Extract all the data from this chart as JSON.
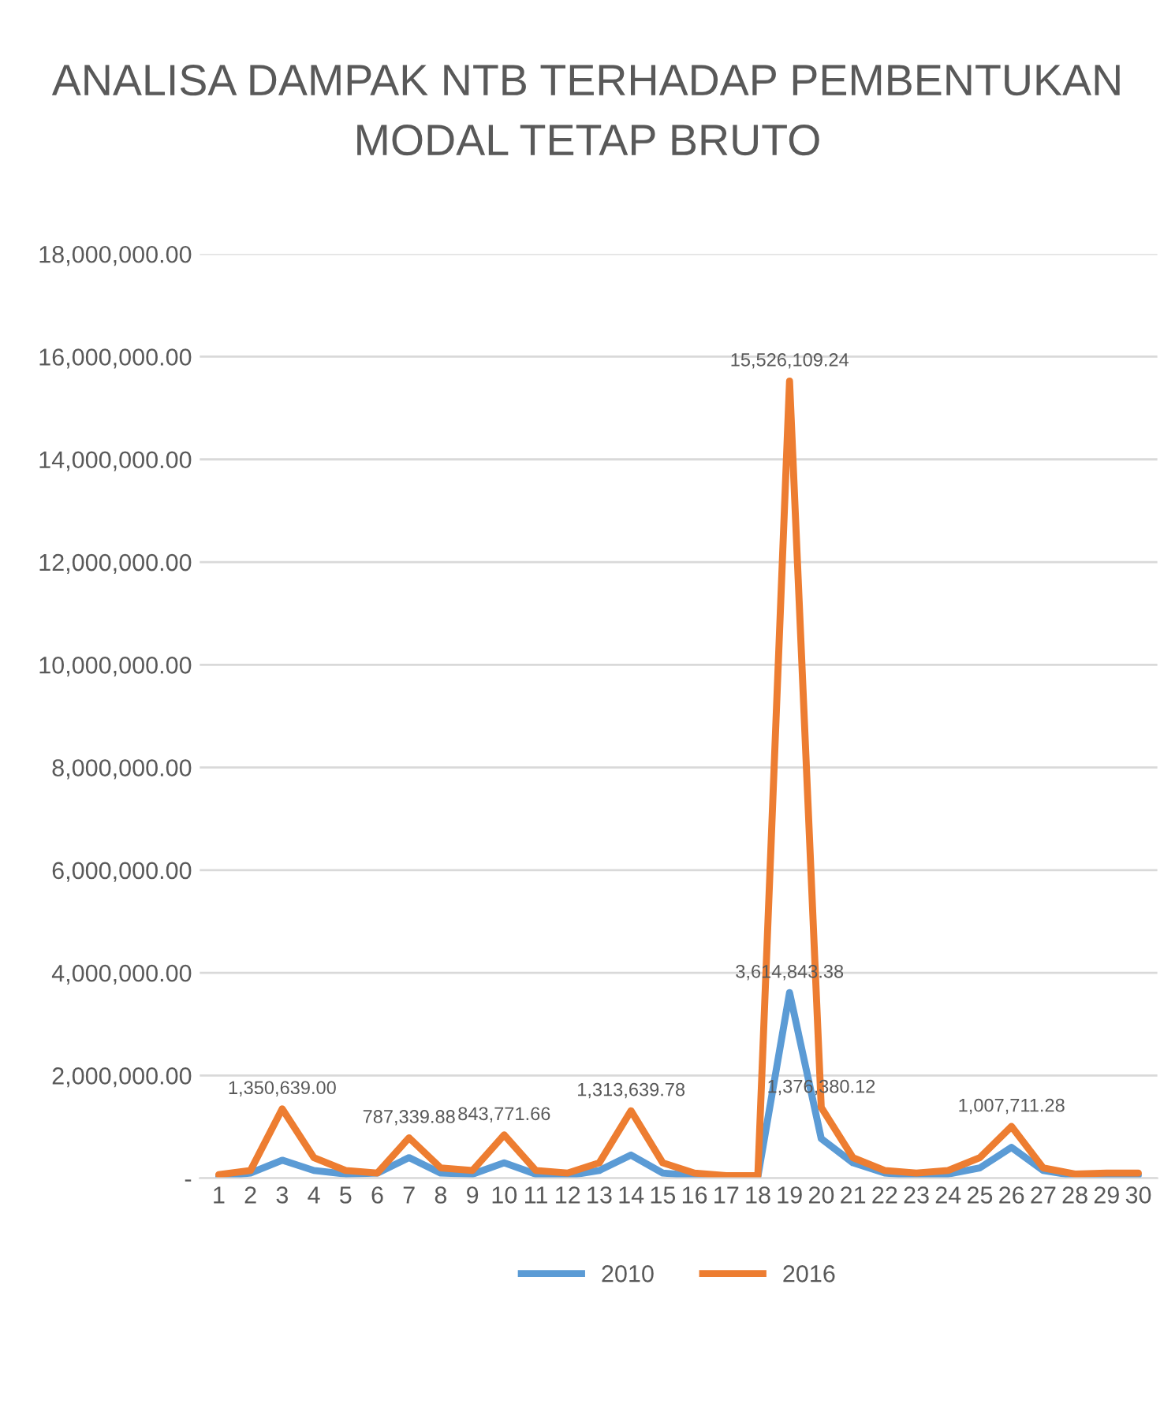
{
  "chart_data": {
    "type": "line",
    "title": "ANALISA DAMPAK NTB TERHADAP PEMBENTUKAN MODAL TETAP BRUTO",
    "categories": [
      "1",
      "2",
      "3",
      "4",
      "5",
      "6",
      "7",
      "8",
      "9",
      "10",
      "11",
      "12",
      "13",
      "14",
      "15",
      "16",
      "17",
      "18",
      "19",
      "20",
      "21",
      "22",
      "23",
      "24",
      "25",
      "26",
      "27",
      "28",
      "29",
      "30"
    ],
    "series": [
      {
        "name": "2010",
        "color": "#5b9bd5",
        "values": [
          30000,
          100000,
          350000,
          150000,
          80000,
          100000,
          400000,
          100000,
          80000,
          300000,
          80000,
          50000,
          150000,
          450000,
          100000,
          50000,
          30000,
          30000,
          3614843.38,
          770000,
          300000,
          100000,
          50000,
          80000,
          200000,
          600000,
          150000,
          50000,
          60000,
          60000
        ],
        "value_labels": [
          null,
          null,
          null,
          null,
          null,
          null,
          null,
          null,
          null,
          null,
          null,
          null,
          null,
          null,
          null,
          null,
          null,
          null,
          "3,614,843.38",
          null,
          null,
          null,
          null,
          null,
          null,
          null,
          null,
          null,
          null,
          null
        ]
      },
      {
        "name": "2016",
        "color": "#ed7d31",
        "values": [
          70000,
          150000,
          1350639,
          400000,
          150000,
          100000,
          787339.88,
          200000,
          150000,
          843771.66,
          150000,
          100000,
          300000,
          1313639.78,
          300000,
          100000,
          50000,
          50000,
          15526109.24,
          1376380.12,
          400000,
          150000,
          100000,
          150000,
          400000,
          1007711.28,
          200000,
          80000,
          100000,
          100000
        ],
        "value_labels": [
          null,
          null,
          "1,350,639.00",
          null,
          null,
          null,
          "787,339.88",
          null,
          null,
          "843,771.66",
          null,
          null,
          null,
          "1,313,639.78",
          null,
          null,
          null,
          null,
          "15,526,109.24",
          "1,376,380.12",
          null,
          null,
          null,
          null,
          null,
          "1,007,711.28",
          null,
          null,
          null,
          null
        ]
      }
    ],
    "ylim": [
      0,
      18000000
    ],
    "yticks": [
      {
        "value": 0,
        "label": "-"
      },
      {
        "value": 2000000,
        "label": "2,000,000.00"
      },
      {
        "value": 4000000,
        "label": "4,000,000.00"
      },
      {
        "value": 6000000,
        "label": "6,000,000.00"
      },
      {
        "value": 8000000,
        "label": "8,000,000.00"
      },
      {
        "value": 10000000,
        "label": "10,000,000.00"
      },
      {
        "value": 12000000,
        "label": "12,000,000.00"
      },
      {
        "value": 14000000,
        "label": "14,000,000.00"
      },
      {
        "value": 16000000,
        "label": "16,000,000.00"
      },
      {
        "value": 18000000,
        "label": "18,000,000.00"
      }
    ],
    "grid": "y",
    "legend": "bottom",
    "marker": "none",
    "line_style": "solid"
  }
}
